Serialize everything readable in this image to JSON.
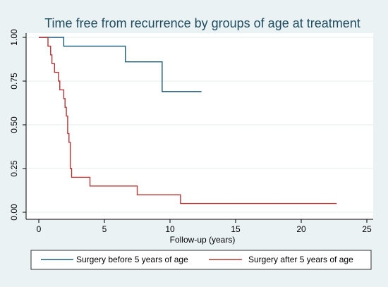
{
  "chart_data": {
    "type": "line",
    "step": true,
    "title": "Time free from recurrence by groups of age at treatment",
    "xlabel": "Follow-up (years)",
    "ylabel": "",
    "xlim": [
      0,
      25
    ],
    "ylim": [
      0,
      1
    ],
    "xticks": [
      0,
      5,
      10,
      15,
      20,
      25
    ],
    "xtick_labels": [
      "0",
      "5",
      "10",
      "15",
      "20",
      "25"
    ],
    "yticks": [
      0,
      0.25,
      0.5,
      0.75,
      1
    ],
    "ytick_labels": [
      "0.00",
      "0.25",
      "0.50",
      "0.75",
      "1.00"
    ],
    "grid": "horizontal",
    "legend_position": "bottom",
    "colors": {
      "background": "#eaf2f3",
      "plot_area": "#ffffff",
      "title": "#1e4c61",
      "grid": "#e5ecef",
      "axis": "#000000"
    },
    "series": [
      {
        "name": "Surgery before 5 years of age",
        "color": "#1c5a7a",
        "x": [
          0,
          1.9,
          6.6,
          9.4,
          12.4
        ],
        "y": [
          1.0,
          0.95,
          0.86,
          0.69,
          0.69
        ]
      },
      {
        "name": "Surgery after 5 years of age",
        "color": "#b53435",
        "x": [
          0,
          0.7,
          0.9,
          1.0,
          1.2,
          1.5,
          1.6,
          1.8,
          1.9,
          2.0,
          2.1,
          2.2,
          2.3,
          2.4,
          2.5,
          3.9,
          7.5,
          10.8,
          22.7
        ],
        "y": [
          1.0,
          0.95,
          0.9,
          0.85,
          0.8,
          0.75,
          0.7,
          0.7,
          0.65,
          0.6,
          0.55,
          0.45,
          0.4,
          0.25,
          0.2,
          0.15,
          0.1,
          0.05,
          0.05
        ]
      }
    ]
  }
}
